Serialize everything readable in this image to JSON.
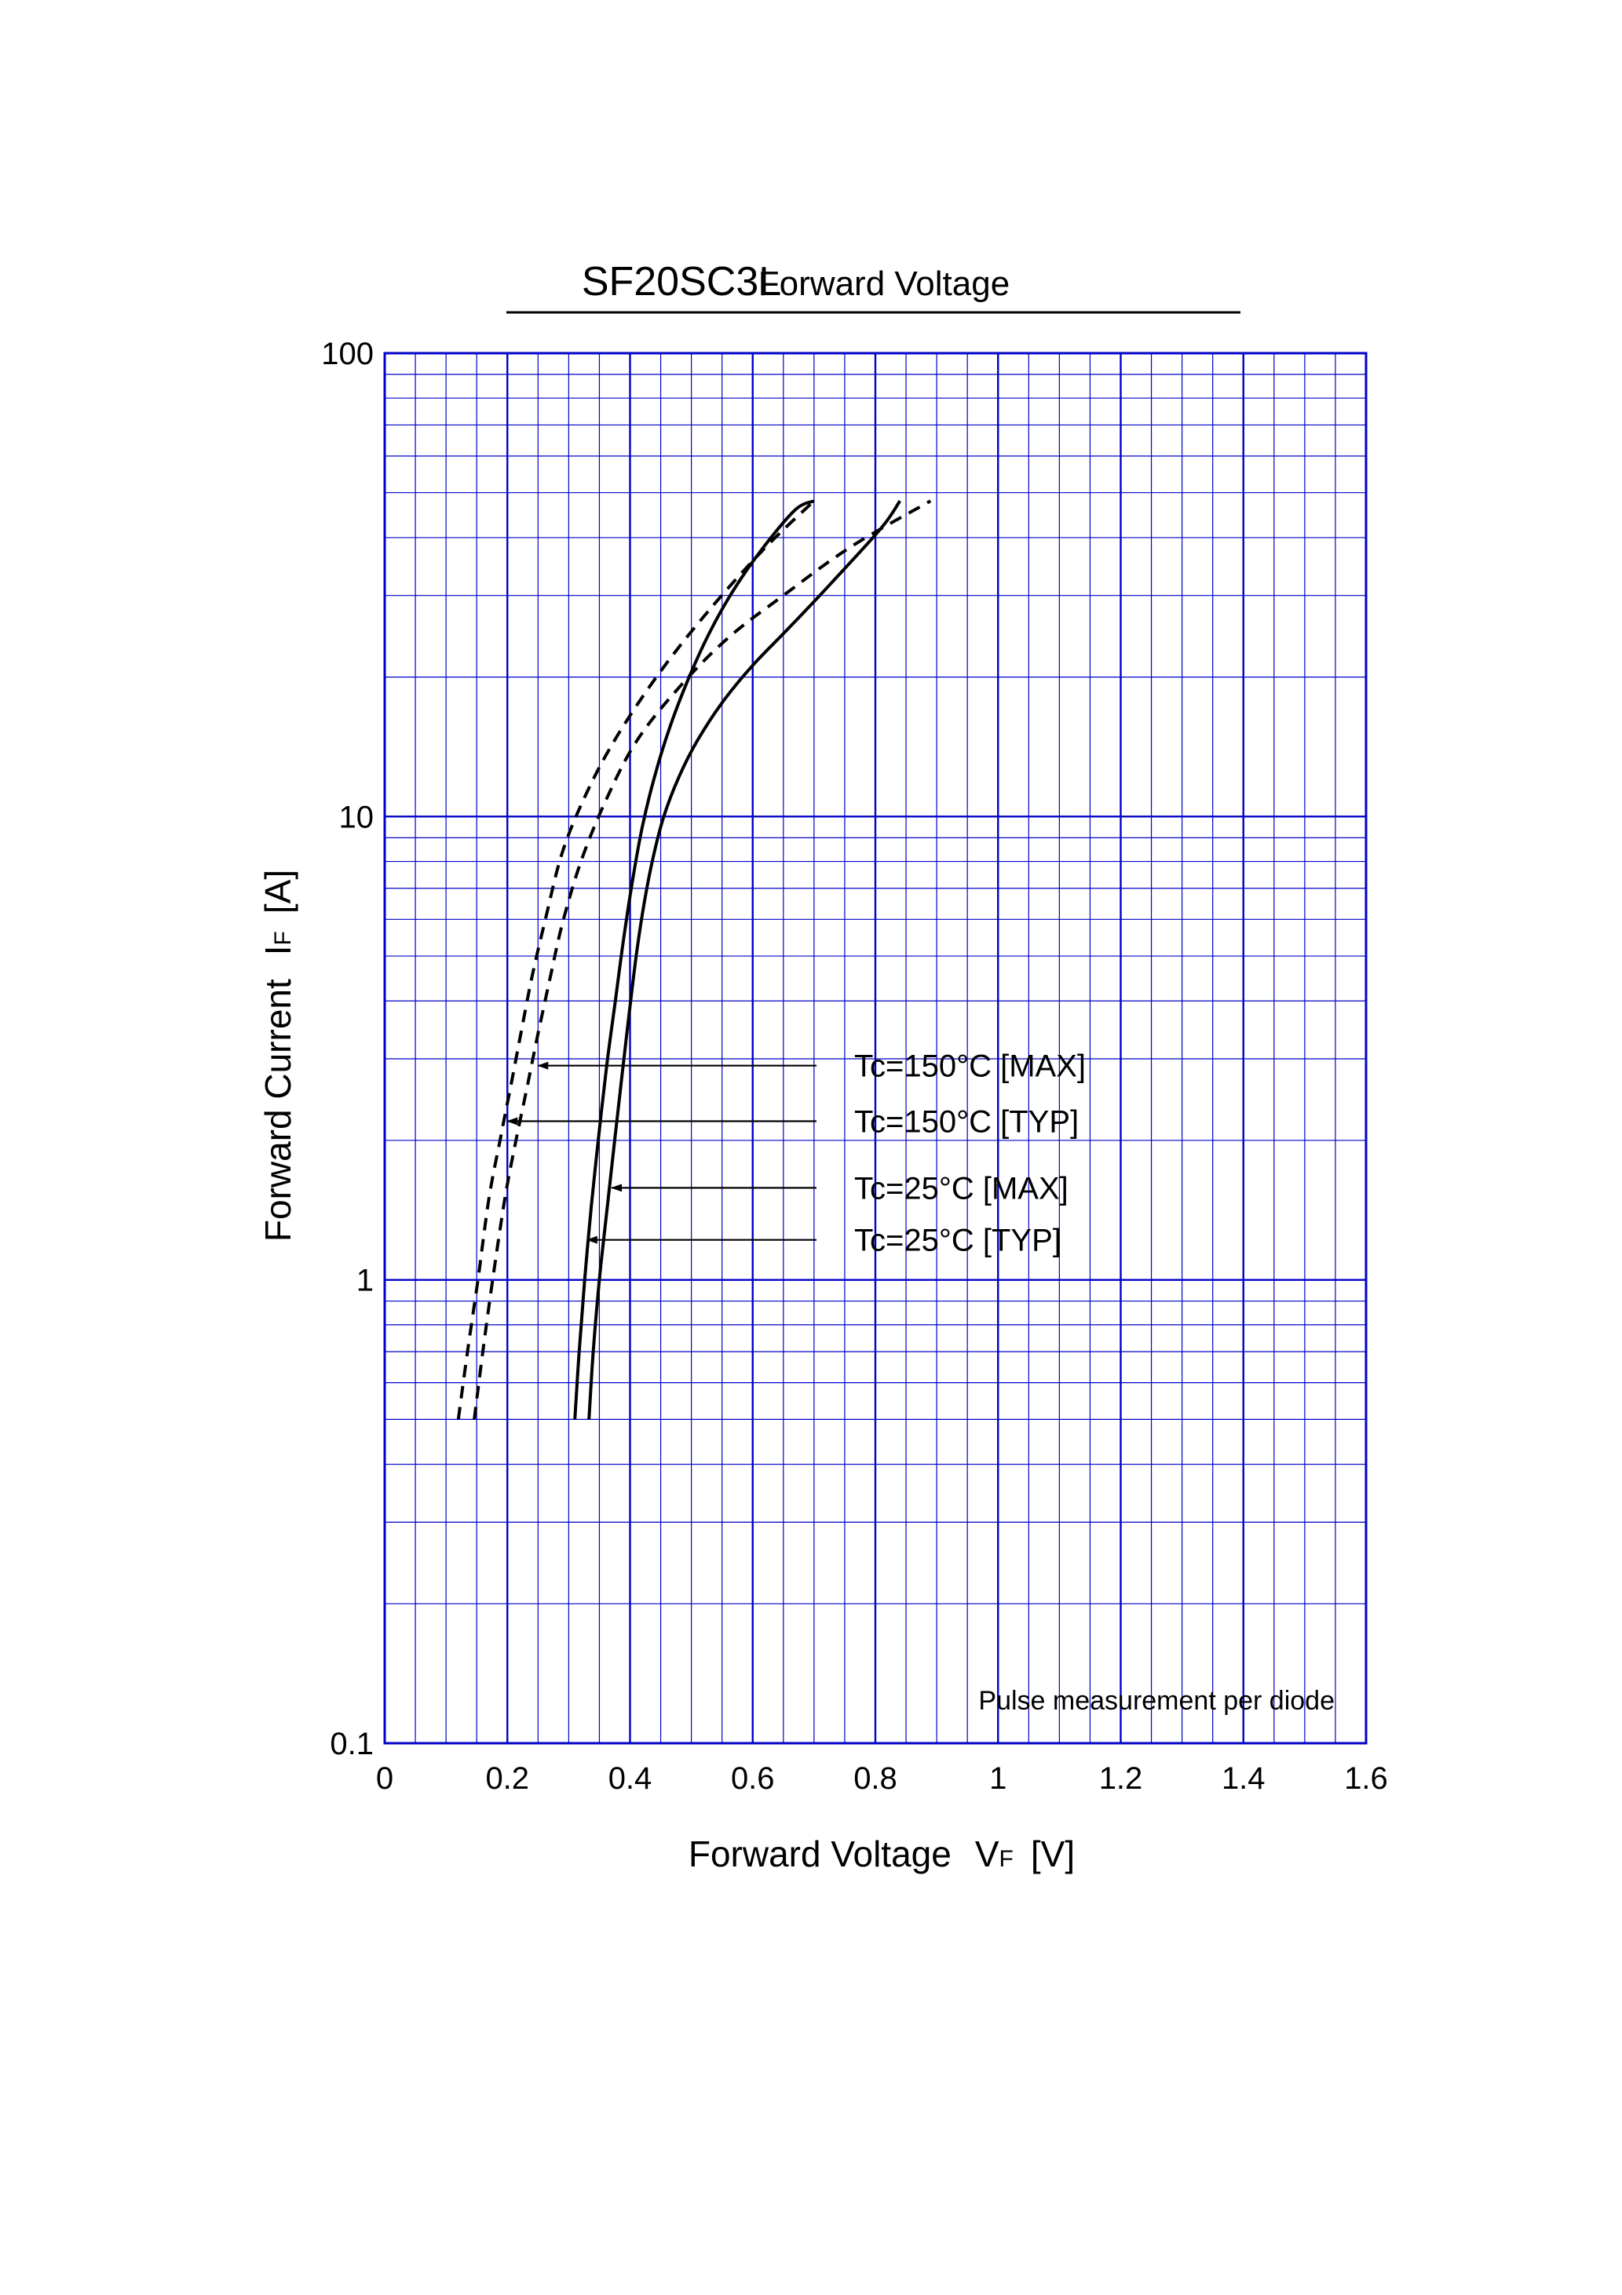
{
  "chart_data": {
    "type": "line",
    "title": "SF20SC3L",
    "subtitle": "Forward Voltage",
    "xlabel": "Forward Voltage",
    "xlabel_symbol": "V",
    "xlabel_subscript": "F",
    "xlabel_unit": "[V]",
    "ylabel": "Forward Current",
    "ylabel_symbol": "I",
    "ylabel_subscript": "F",
    "ylabel_unit": "[A]",
    "xlim": [
      0,
      1.6
    ],
    "ylim": [
      0.1,
      100
    ],
    "y_scale": "log",
    "grid": true,
    "grid_color": "#0000c8",
    "x_ticks": [
      0,
      0.2,
      0.4,
      0.6,
      0.8,
      1.0,
      1.2,
      1.4,
      1.6
    ],
    "x_tick_labels": [
      "0",
      "0.2",
      "0.4",
      "0.6",
      "0.8",
      "1",
      "1.2",
      "1.4",
      "1.6"
    ],
    "y_ticks": [
      0.1,
      1,
      10,
      100
    ],
    "y_tick_labels": [
      "0.1",
      "1",
      "10",
      "100"
    ],
    "note": "Pulse measurement per diode",
    "series": [
      {
        "name": "Tc=150°C [MAX]",
        "style": "dashed",
        "x": [
          0.146,
          0.16,
          0.176,
          0.196,
          0.214,
          0.232,
          0.25,
          0.27,
          0.29,
          0.32,
          0.36,
          0.41,
          0.48,
          0.56,
          0.65,
          0.76,
          0.89
        ],
        "y": [
          0.5,
          0.7,
          1.0,
          1.5,
          2.0,
          2.6,
          3.4,
          4.5,
          5.9,
          8.0,
          10.8,
          14.5,
          19.0,
          24.3,
          30.0,
          38.2,
          48.0
        ]
      },
      {
        "name": "Tc=150°C [TYP]",
        "style": "dashed",
        "x": [
          0.12,
          0.135,
          0.152,
          0.17,
          0.188,
          0.205,
          0.222,
          0.24,
          0.262,
          0.29,
          0.33,
          0.38,
          0.45,
          0.53,
          0.62,
          0.7
        ],
        "y": [
          0.5,
          0.7,
          1.0,
          1.5,
          2.0,
          2.6,
          3.4,
          4.5,
          6.0,
          8.4,
          11.3,
          15.0,
          20.6,
          28.0,
          38.0,
          48.0
        ]
      },
      {
        "name": "Tc=25°C [MAX]",
        "style": "solid",
        "x": [
          0.333,
          0.34,
          0.35,
          0.362,
          0.374,
          0.386,
          0.398,
          0.41,
          0.423,
          0.438,
          0.455,
          0.48,
          0.51,
          0.55,
          0.6,
          0.66,
          0.73,
          0.81,
          0.84
        ],
        "y": [
          0.5,
          0.7,
          1.0,
          1.4,
          1.95,
          2.7,
          3.7,
          5.0,
          6.5,
          8.2,
          10.0,
          12.2,
          14.6,
          17.6,
          21.2,
          25.6,
          32.1,
          42.0,
          48.0
        ]
      },
      {
        "name": "Tc=25°C [TYP]",
        "style": "solid",
        "x": [
          0.31,
          0.317,
          0.326,
          0.337,
          0.349,
          0.362,
          0.376,
          0.39,
          0.405,
          0.42,
          0.44,
          0.465,
          0.495,
          0.53,
          0.57,
          0.62,
          0.67,
          0.7
        ],
        "y": [
          0.5,
          0.7,
          1.0,
          1.45,
          2.05,
          2.9,
          4.0,
          5.5,
          7.4,
          9.5,
          12.2,
          15.6,
          19.8,
          25.0,
          31.0,
          38.5,
          46.0,
          48.0
        ]
      }
    ],
    "annotations": [
      {
        "text": "Tc=150°C [MAX]",
        "arrow_to": [
          0.25,
          2.9
        ]
      },
      {
        "text": "Tc=150°C [TYP]",
        "arrow_to": [
          0.2,
          2.2
        ]
      },
      {
        "text": "Tc=25°C [MAX]",
        "arrow_to": [
          0.37,
          1.58
        ]
      },
      {
        "text": "Tc=25°C [TYP]",
        "arrow_to": [
          0.33,
          1.22
        ]
      }
    ]
  }
}
